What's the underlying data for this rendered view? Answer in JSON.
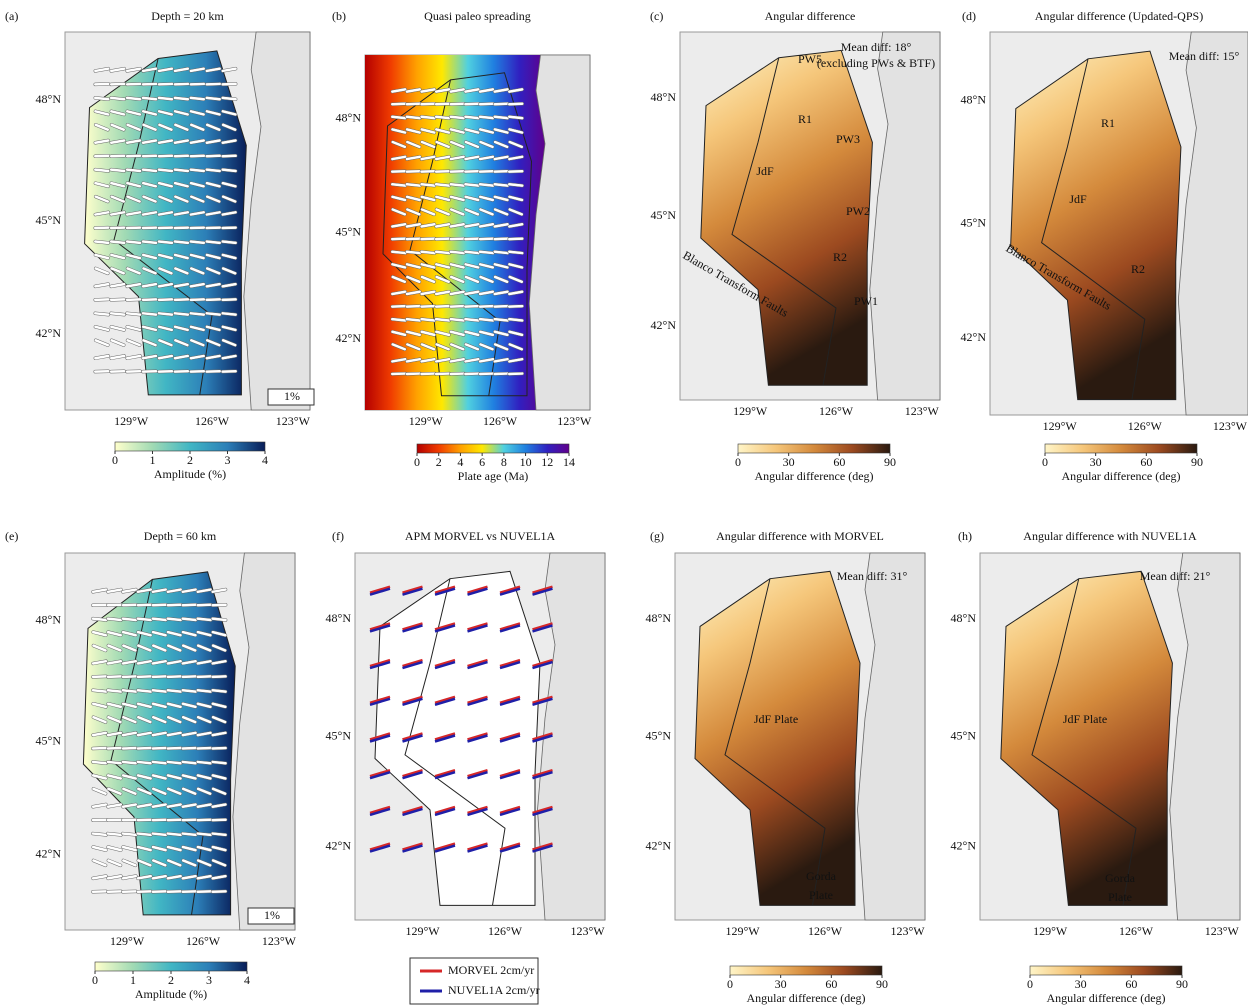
{
  "figure": {
    "panels": [
      {
        "letter": "(a)",
        "title": "Depth = 20 km",
        "lat_labels": [
          "48°N",
          "45°N",
          "42°N"
        ],
        "lon_labels": [
          "129°W",
          "126°W",
          "123°W"
        ],
        "fill": "study",
        "colorbar": {
          "label": "Amplitude (%)",
          "lim": [
            0,
            4
          ],
          "ticks": [
            0,
            1,
            2,
            3,
            4
          ],
          "colors": [
            "#ffffcc",
            "#a1dab4",
            "#41b6c4",
            "#2c7fb8",
            "#081d58"
          ]
        },
        "annotations": [
          "1%"
        ]
      },
      {
        "letter": "(b)",
        "title": "Quasi paleo spreading",
        "lat_labels": [
          "48°N",
          "45°N",
          "42°N"
        ],
        "lon_labels": [
          "129°W",
          "126°W",
          "123°W"
        ],
        "fill": "full",
        "colorbar": {
          "label": "Plate age (Ma)",
          "lim": [
            0,
            14
          ],
          "ticks": [
            0,
            2,
            4,
            6,
            8,
            10,
            12,
            14
          ],
          "colors": [
            "#b40000",
            "#f03c00",
            "#ffa000",
            "#ffe800",
            "#50d0e0",
            "#2080e0",
            "#3020c0",
            "#60008c"
          ]
        },
        "annotations": []
      },
      {
        "letter": "(c)",
        "title": "Angular difference",
        "lat_labels": [
          "48°N",
          "45°N",
          "42°N"
        ],
        "lon_labels": [
          "129°W",
          "126°W",
          "123°W"
        ],
        "fill": "study",
        "colorbar": {
          "label": "Angular difference (deg)",
          "lim": [
            0,
            90
          ],
          "ticks": [
            0,
            30,
            60,
            90
          ],
          "colors": [
            "#fff5c8",
            "#f5c67a",
            "#d48a3c",
            "#9c4a20",
            "#2a1a10"
          ]
        },
        "annotations": [
          "Mean diff: 18°",
          "(excluding PWs & BTF)",
          "PW5",
          "PW3",
          "PW2",
          "PW1",
          "R1",
          "R2",
          "JdF",
          "Blanco Transform Faults"
        ]
      },
      {
        "letter": "(d)",
        "title": "Angular difference (Updated-QPS)",
        "lat_labels": [
          "48°N",
          "45°N",
          "42°N"
        ],
        "lon_labels": [
          "129°W",
          "126°W",
          "123°W"
        ],
        "fill": "study",
        "colorbar": {
          "label": "Angular difference (deg)",
          "lim": [
            0,
            90
          ],
          "ticks": [
            0,
            30,
            60,
            90
          ],
          "colors": [
            "#fff5c8",
            "#f5c67a",
            "#d48a3c",
            "#9c4a20",
            "#2a1a10"
          ]
        },
        "annotations": [
          "Mean diff: 15°",
          "R1",
          "JdF",
          "R2",
          "Blanco Transform Faults"
        ]
      },
      {
        "letter": "(e)",
        "title": "Depth = 60 km",
        "lat_labels": [
          "48°N",
          "45°N",
          "42°N"
        ],
        "lon_labels": [
          "129°W",
          "126°W",
          "123°W"
        ],
        "fill": "study",
        "colorbar": {
          "label": "Amplitude (%)",
          "lim": [
            0,
            4
          ],
          "ticks": [
            0,
            1,
            2,
            3,
            4
          ],
          "colors": [
            "#ffffcc",
            "#a1dab4",
            "#41b6c4",
            "#2c7fb8",
            "#081d58"
          ]
        },
        "annotations": [
          "1%"
        ]
      },
      {
        "letter": "(f)",
        "title": "APM MORVEL vs NUVEL1A",
        "lat_labels": [
          "48°N",
          "45°N",
          "42°N"
        ],
        "lon_labels": [
          "129°W",
          "126°W",
          "123°W"
        ],
        "fill": "white",
        "legend": [
          {
            "name": "MORVEL 2cm/yr",
            "color": "#d62728"
          },
          {
            "name": "NUVEL1A 2cm/yr",
            "color": "#1f1fa8"
          }
        ],
        "annotations": []
      },
      {
        "letter": "(g)",
        "title": "Angular difference with MORVEL",
        "lat_labels": [
          "48°N",
          "45°N",
          "42°N"
        ],
        "lon_labels": [
          "129°W",
          "126°W",
          "123°W"
        ],
        "fill": "study",
        "colorbar": {
          "label": "Angular difference (deg)",
          "lim": [
            0,
            90
          ],
          "ticks": [
            0,
            30,
            60,
            90
          ],
          "colors": [
            "#fff5c8",
            "#f5c67a",
            "#d48a3c",
            "#9c4a20",
            "#2a1a10"
          ]
        },
        "annotations": [
          "Mean diff: 31°",
          "JdF Plate",
          "Gorda",
          "Plate"
        ]
      },
      {
        "letter": "(h)",
        "title": "Angular difference with NUVEL1A",
        "lat_labels": [
          "48°N",
          "45°N",
          "42°N"
        ],
        "lon_labels": [
          "129°W",
          "126°W",
          "123°W"
        ],
        "fill": "study",
        "colorbar": {
          "label": "Angular difference (deg)",
          "lim": [
            0,
            90
          ],
          "ticks": [
            0,
            30,
            60,
            90
          ],
          "colors": [
            "#fff5c8",
            "#f5c67a",
            "#d48a3c",
            "#9c4a20",
            "#2a1a10"
          ]
        },
        "annotations": [
          "Mean diff: 21°",
          "JdF Plate",
          "Gorda",
          "Plate"
        ]
      }
    ]
  }
}
